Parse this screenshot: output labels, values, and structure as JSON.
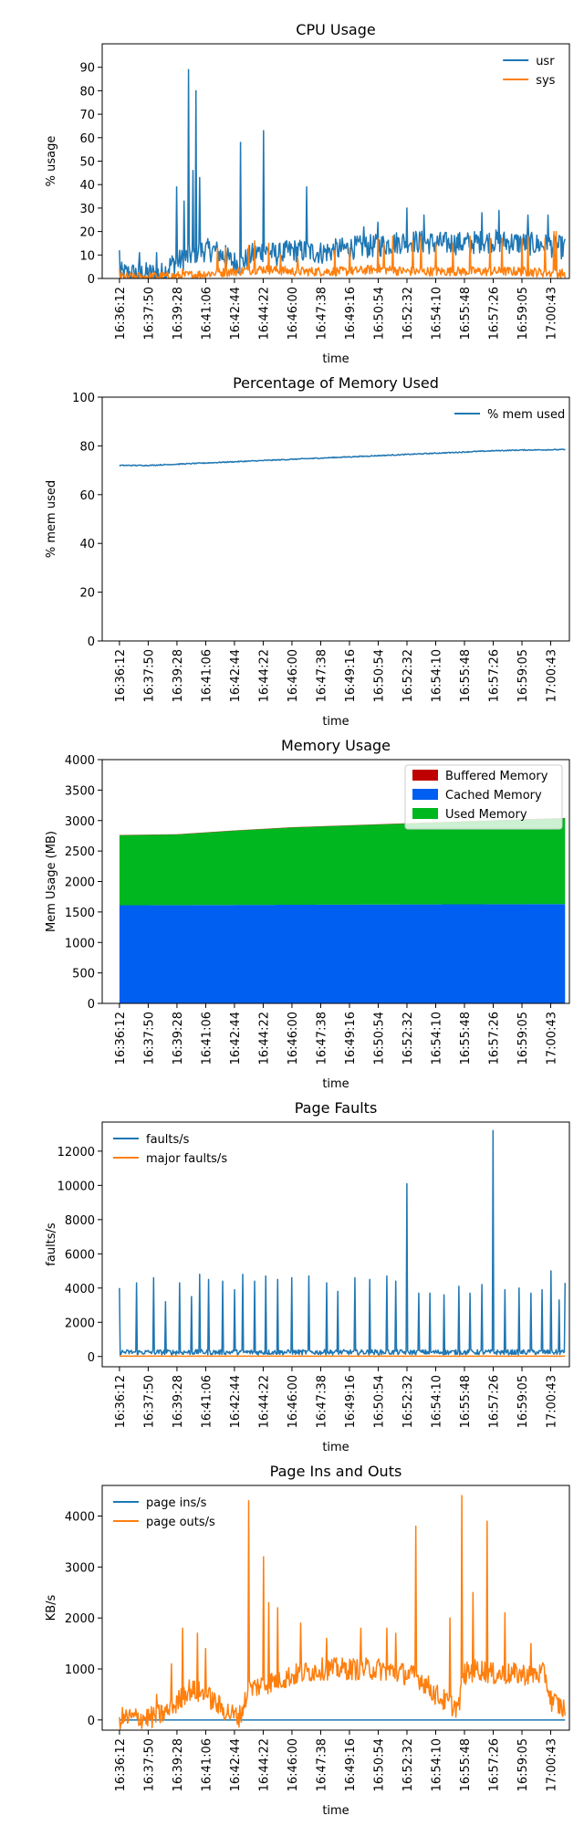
{
  "time_ticks": [
    "16:36:12",
    "16:37:50",
    "16:39:28",
    "16:41:06",
    "16:42:44",
    "16:44:22",
    "16:46:00",
    "16:47:38",
    "16:49:16",
    "16:50:54",
    "16:52:32",
    "16:54:10",
    "16:55:48",
    "16:57:26",
    "16:59:05",
    "17:00:43"
  ],
  "chart_data": [
    {
      "type": "line",
      "title": "CPU Usage",
      "xlabel": "time",
      "ylabel": "% usage",
      "ylim": [
        0,
        100
      ],
      "yticks": [
        0,
        10,
        20,
        30,
        40,
        50,
        60,
        70,
        80,
        90
      ],
      "legend": "top-right",
      "series": [
        {
          "name": "usr",
          "color": "#1f77b4",
          "base": [
            [
              0,
              2
            ],
            [
              1.5,
              2
            ],
            [
              1.8,
              6
            ],
            [
              2.2,
              8
            ],
            [
              2.8,
              12
            ],
            [
              3.3,
              12
            ],
            [
              3.8,
              8
            ],
            [
              4.2,
              6
            ],
            [
              4.6,
              10
            ],
            [
              5.0,
              12
            ],
            [
              5.5,
              10
            ],
            [
              6.0,
              12
            ],
            [
              7.0,
              11
            ],
            [
              8.0,
              13
            ],
            [
              9.0,
              14
            ],
            [
              10.0,
              16
            ],
            [
              11.0,
              15
            ],
            [
              12.0,
              15
            ],
            [
              13.0,
              16
            ],
            [
              14.0,
              15
            ],
            [
              15.0,
              14
            ],
            [
              15.5,
              13
            ]
          ],
          "amp": 5,
          "spikes": [
            [
              0,
              12
            ],
            [
              0.7,
              11
            ],
            [
              1.3,
              11
            ],
            [
              2.0,
              39
            ],
            [
              2.25,
              33
            ],
            [
              2.4,
              89
            ],
            [
              2.55,
              46
            ],
            [
              2.65,
              80
            ],
            [
              2.8,
              43
            ],
            [
              3.7,
              14
            ],
            [
              4.2,
              58
            ],
            [
              5.0,
              63
            ],
            [
              6.5,
              39
            ],
            [
              8.5,
              22
            ],
            [
              9.0,
              24
            ],
            [
              10.0,
              30
            ],
            [
              10.6,
              27
            ],
            [
              12.6,
              28
            ],
            [
              13.2,
              29
            ],
            [
              14.2,
              27
            ],
            [
              14.9,
              27
            ]
          ]
        },
        {
          "name": "sys",
          "color": "#ff7f0e",
          "base": [
            [
              0,
              0.5
            ],
            [
              2.0,
              1
            ],
            [
              3.0,
              2
            ],
            [
              4.0,
              3
            ],
            [
              5.0,
              4
            ],
            [
              6.0,
              3
            ],
            [
              8.0,
              3
            ],
            [
              9.0,
              4
            ],
            [
              10.0,
              3
            ],
            [
              12.0,
              3
            ],
            [
              14.0,
              3
            ],
            [
              15.5,
              2
            ]
          ],
          "amp": 2,
          "spikes": [
            [
              0,
              4
            ],
            [
              2.2,
              4
            ],
            [
              3.4,
              13
            ],
            [
              3.7,
              13
            ],
            [
              4.5,
              14
            ],
            [
              4.7,
              16
            ],
            [
              5.2,
              15
            ],
            [
              5.6,
              10
            ],
            [
              6.2,
              9
            ],
            [
              7.5,
              12
            ],
            [
              8.0,
              13
            ],
            [
              9.0,
              17
            ],
            [
              9.2,
              15
            ],
            [
              9.5,
              18
            ],
            [
              10.2,
              16
            ],
            [
              10.5,
              18
            ],
            [
              11.0,
              15
            ],
            [
              11.6,
              15
            ],
            [
              12.2,
              18
            ],
            [
              12.9,
              17
            ],
            [
              13.3,
              17
            ],
            [
              14.0,
              17
            ],
            [
              14.2,
              18
            ],
            [
              14.8,
              17
            ],
            [
              15.1,
              20
            ],
            [
              15.2,
              20
            ]
          ]
        }
      ]
    },
    {
      "type": "line",
      "title": "Percentage of Memory Used",
      "xlabel": "time",
      "ylabel": "% mem used",
      "ylim": [
        0,
        100
      ],
      "yticks": [
        0,
        20,
        40,
        60,
        80,
        100
      ],
      "legend": "top-right",
      "series": [
        {
          "name": "% mem used",
          "color": "#1f77b4",
          "base": [
            [
              0,
              72
            ],
            [
              1,
              72
            ],
            [
              2,
              72.5
            ],
            [
              3,
              73
            ],
            [
              4,
              73.5
            ],
            [
              5,
              74
            ],
            [
              6,
              74.5
            ],
            [
              7,
              75
            ],
            [
              8,
              75.5
            ],
            [
              9,
              76
            ],
            [
              10,
              76.5
            ],
            [
              11,
              77
            ],
            [
              12,
              77.5
            ],
            [
              13,
              78
            ],
            [
              14,
              78.3
            ],
            [
              15.5,
              78.5
            ]
          ],
          "amp": 0.2,
          "spikes": []
        }
      ]
    },
    {
      "type": "area",
      "title": "Memory Usage",
      "xlabel": "time",
      "ylabel": "Mem Usage (MB)",
      "ylim": [
        0,
        4000
      ],
      "yticks": [
        0,
        500,
        1000,
        1500,
        2000,
        2500,
        3000,
        3500,
        4000
      ],
      "legend": "top-right",
      "series": [
        {
          "name": "Buffered Memory",
          "color": "#c00000",
          "values_at": [
            [
              0,
              0
            ],
            [
              15.5,
              0
            ]
          ]
        },
        {
          "name": "Cached Memory",
          "color": "#005ff0",
          "values_at": [
            [
              0,
              1610
            ],
            [
              15.5,
              1630
            ]
          ]
        },
        {
          "name": "Used Memory",
          "color": "#00b720",
          "values_at": [
            [
              0,
              1150
            ],
            [
              2,
              1160
            ],
            [
              4,
              1220
            ],
            [
              6,
              1270
            ],
            [
              8,
              1300
            ],
            [
              10,
              1330
            ],
            [
              12,
              1360
            ],
            [
              14,
              1390
            ],
            [
              15.5,
              1410
            ]
          ]
        }
      ]
    },
    {
      "type": "line",
      "title": "Page Faults",
      "xlabel": "time",
      "ylabel": "faults/s",
      "ylim": [
        -600,
        13700
      ],
      "yticks": [
        0,
        2000,
        4000,
        6000,
        8000,
        10000,
        12000
      ],
      "legend": "top-left",
      "series": [
        {
          "name": "faults/s",
          "color": "#1f77b4",
          "base": [
            [
              0,
              250
            ],
            [
              15.5,
              250
            ]
          ],
          "amp": 150,
          "spikes": [
            [
              0,
              4000
            ],
            [
              0.6,
              4300
            ],
            [
              1.2,
              4600
            ],
            [
              1.6,
              3200
            ],
            [
              2.1,
              4300
            ],
            [
              2.5,
              3500
            ],
            [
              2.8,
              4800
            ],
            [
              3.1,
              4500
            ],
            [
              3.6,
              4400
            ],
            [
              4.0,
              3900
            ],
            [
              4.3,
              4800
            ],
            [
              4.7,
              4400
            ],
            [
              5.1,
              4700
            ],
            [
              5.5,
              4500
            ],
            [
              6.0,
              4600
            ],
            [
              6.6,
              4700
            ],
            [
              7.2,
              4300
            ],
            [
              7.6,
              3800
            ],
            [
              8.2,
              4600
            ],
            [
              8.7,
              4500
            ],
            [
              9.3,
              4700
            ],
            [
              9.6,
              4400
            ],
            [
              10.0,
              10100
            ],
            [
              10.4,
              3700
            ],
            [
              10.8,
              3700
            ],
            [
              11.3,
              3600
            ],
            [
              11.8,
              4100
            ],
            [
              12.2,
              3700
            ],
            [
              12.6,
              4200
            ],
            [
              13.0,
              13200
            ],
            [
              13.4,
              3900
            ],
            [
              13.9,
              4000
            ],
            [
              14.3,
              3700
            ],
            [
              14.7,
              3900
            ],
            [
              15.0,
              5000
            ],
            [
              15.3,
              3300
            ],
            [
              15.5,
              4300
            ]
          ]
        },
        {
          "name": "major faults/s",
          "color": "#ff7f0e",
          "base": [
            [
              0,
              20
            ],
            [
              15.5,
              20
            ]
          ],
          "amp": 5,
          "spikes": []
        }
      ]
    },
    {
      "type": "line",
      "title": "Page Ins and Outs",
      "xlabel": "time",
      "ylabel": "KB/s",
      "ylim": [
        -200,
        4600
      ],
      "yticks": [
        0,
        1000,
        2000,
        3000,
        4000
      ],
      "legend": "top-left",
      "series": [
        {
          "name": "page ins/s",
          "color": "#1f77b4",
          "base": [
            [
              0,
              0
            ],
            [
              15.5,
              0
            ]
          ],
          "amp": 0,
          "spikes": []
        },
        {
          "name": "page outs/s",
          "color": "#ff7f0e",
          "base": [
            [
              0,
              30
            ],
            [
              1.2,
              50
            ],
            [
              1.8,
              200
            ],
            [
              2.4,
              600
            ],
            [
              3.0,
              500
            ],
            [
              3.5,
              250
            ],
            [
              4.0,
              80
            ],
            [
              4.2,
              80
            ],
            [
              4.5,
              600
            ],
            [
              5.0,
              700
            ],
            [
              5.6,
              800
            ],
            [
              6.2,
              900
            ],
            [
              7.0,
              1000
            ],
            [
              8.0,
              1000
            ],
            [
              9.0,
              1000
            ],
            [
              10.0,
              900
            ],
            [
              10.5,
              800
            ],
            [
              11.0,
              500
            ],
            [
              11.5,
              300
            ],
            [
              11.8,
              250
            ],
            [
              12.0,
              900
            ],
            [
              12.5,
              1000
            ],
            [
              13.0,
              900
            ],
            [
              14.0,
              900
            ],
            [
              14.8,
              900
            ],
            [
              15.0,
              400
            ],
            [
              15.5,
              200
            ]
          ],
          "amp": 220,
          "spikes": [
            [
              1.3,
              500
            ],
            [
              1.8,
              1100
            ],
            [
              2.2,
              1800
            ],
            [
              2.7,
              1700
            ],
            [
              3.0,
              1400
            ],
            [
              4.5,
              4300
            ],
            [
              5.0,
              3200
            ],
            [
              5.2,
              2300
            ],
            [
              5.5,
              2200
            ],
            [
              6.3,
              1900
            ],
            [
              7.2,
              1600
            ],
            [
              8.4,
              1800
            ],
            [
              9.3,
              1800
            ],
            [
              9.6,
              1700
            ],
            [
              10.3,
              3800
            ],
            [
              11.5,
              2000
            ],
            [
              11.9,
              4400
            ],
            [
              12.3,
              2500
            ],
            [
              12.8,
              3900
            ],
            [
              13.4,
              2100
            ],
            [
              14.3,
              1500
            ]
          ]
        }
      ]
    }
  ]
}
